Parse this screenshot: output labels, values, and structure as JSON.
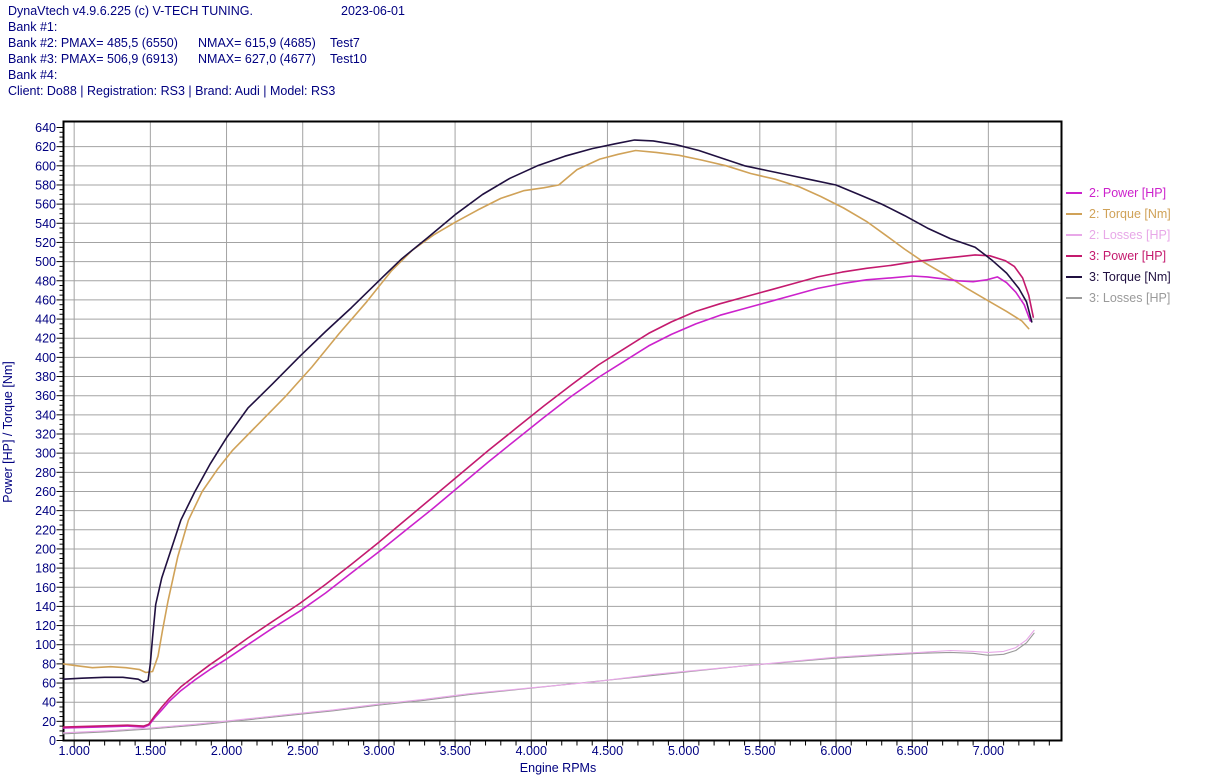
{
  "header": {
    "app_title": "DynaVtech v4.9.6.225 (c) V-TECH TUNING.",
    "date": "2023-06-01",
    "bank1": "Bank #1:",
    "bank2": {
      "pmax": "Bank #2: PMAX= 485,5 (6550)",
      "nmax": "NMAX= 615,9 (4685)",
      "test": "Test7"
    },
    "bank3": {
      "pmax": "Bank #3: PMAX= 506,9 (6913)",
      "nmax": "NMAX= 627,0 (4677)",
      "test": "Test10"
    },
    "bank4": "Bank #4:",
    "client_line": "Client: Do88 | Registration: RS3 | Brand: Audi | Model: RS3"
  },
  "legend": {
    "items": [
      {
        "label": "2: Power [HP]",
        "color": "#cc22cc"
      },
      {
        "label": "2: Torque [Nm]",
        "color": "#d0a258"
      },
      {
        "label": "2: Losses [HP]",
        "color": "#e8a8e8"
      },
      {
        "label": "3: Power [HP]",
        "color": "#c41a6e"
      },
      {
        "label": "3: Torque [Nm]",
        "color": "#201040"
      },
      {
        "label": "3: Losses [HP]",
        "color": "#9a9a9a"
      }
    ]
  },
  "colors": {
    "text": "#000080",
    "grid": "#a3a3a3",
    "border": "#000000",
    "background": "#ffffff"
  },
  "chart_data": {
    "type": "line",
    "title": "",
    "xlabel": "Engine RPMs",
    "ylabel": "Power [HP] / Torque [Nm]",
    "grid": true,
    "legend_position": "right",
    "x_axis": {
      "min": 930,
      "max": 7480,
      "major_tick": 500,
      "minor_tick": 100,
      "tick_labels": [
        {
          "rpm": 1000,
          "label": "1.000"
        },
        {
          "rpm": 1500,
          "label": "1.500"
        },
        {
          "rpm": 2000,
          "label": "2.000"
        },
        {
          "rpm": 2500,
          "label": "2.500"
        },
        {
          "rpm": 3000,
          "label": "3.000"
        },
        {
          "rpm": 3500,
          "label": "3.500"
        },
        {
          "rpm": 4000,
          "label": "4.000"
        },
        {
          "rpm": 4500,
          "label": "4.500"
        },
        {
          "rpm": 5000,
          "label": "5.000"
        },
        {
          "rpm": 5500,
          "label": "5.500"
        },
        {
          "rpm": 6000,
          "label": "6.000"
        },
        {
          "rpm": 6500,
          "label": "6.500"
        },
        {
          "rpm": 7000,
          "label": "7.000"
        }
      ]
    },
    "y_axis": {
      "min": 0,
      "max": 640,
      "major_tick": 20,
      "minor_tick": 5
    },
    "peaks": {
      "bank2": {
        "pmax_hp": 485.5,
        "pmax_rpm": 6550,
        "nmax_nm": 615.9,
        "nmax_rpm": 4685
      },
      "bank3": {
        "pmax_hp": 506.9,
        "pmax_rpm": 6913,
        "nmax_nm": 627.0,
        "nmax_rpm": 4677
      }
    },
    "series": [
      {
        "id": "l3",
        "name": "3: Losses [HP]",
        "color": "#9a9a9a",
        "width": 1.1,
        "points": [
          [
            930,
            7
          ],
          [
            1200,
            9
          ],
          [
            1500,
            12
          ],
          [
            1800,
            16
          ],
          [
            2100,
            21
          ],
          [
            2400,
            26
          ],
          [
            2700,
            31
          ],
          [
            3000,
            37
          ],
          [
            3300,
            42
          ],
          [
            3600,
            48
          ],
          [
            3900,
            53
          ],
          [
            4200,
            58
          ],
          [
            4500,
            63
          ],
          [
            4800,
            68
          ],
          [
            5100,
            73
          ],
          [
            5400,
            78
          ],
          [
            5700,
            82
          ],
          [
            6000,
            86
          ],
          [
            6300,
            89
          ],
          [
            6550,
            91
          ],
          [
            6750,
            92
          ],
          [
            6900,
            91
          ],
          [
            7000,
            89
          ],
          [
            7100,
            90
          ],
          [
            7180,
            94
          ],
          [
            7250,
            102
          ],
          [
            7300,
            112
          ]
        ]
      },
      {
        "id": "l2",
        "name": "2: Losses [HP]",
        "color": "#e8a8e8",
        "width": 1.1,
        "points": [
          [
            930,
            8
          ],
          [
            1200,
            10
          ],
          [
            1500,
            13
          ],
          [
            1800,
            17
          ],
          [
            2100,
            22
          ],
          [
            2400,
            27
          ],
          [
            2700,
            32
          ],
          [
            3000,
            38
          ],
          [
            3300,
            43
          ],
          [
            3600,
            49
          ],
          [
            4000,
            55
          ],
          [
            4400,
            61
          ],
          [
            4800,
            69
          ],
          [
            5200,
            75
          ],
          [
            5600,
            81
          ],
          [
            6000,
            87
          ],
          [
            6300,
            90
          ],
          [
            6550,
            92
          ],
          [
            6750,
            94
          ],
          [
            6900,
            93
          ],
          [
            7000,
            92
          ],
          [
            7100,
            93
          ],
          [
            7180,
            97
          ],
          [
            7250,
            105
          ],
          [
            7300,
            115
          ]
        ]
      },
      {
        "id": "t2",
        "name": "2: Torque [Nm]",
        "color": "#d0a258",
        "width": 1.6,
        "points": [
          [
            930,
            80
          ],
          [
            1020,
            78
          ],
          [
            1120,
            76
          ],
          [
            1240,
            77
          ],
          [
            1340,
            76
          ],
          [
            1430,
            74
          ],
          [
            1470,
            71
          ],
          [
            1515,
            72
          ],
          [
            1550,
            88
          ],
          [
            1580,
            115
          ],
          [
            1615,
            145
          ],
          [
            1680,
            192
          ],
          [
            1750,
            230
          ],
          [
            1840,
            260
          ],
          [
            1940,
            283
          ],
          [
            2040,
            303
          ],
          [
            2200,
            329
          ],
          [
            2380,
            358
          ],
          [
            2560,
            390
          ],
          [
            2740,
            425
          ],
          [
            2920,
            458
          ],
          [
            3080,
            490
          ],
          [
            3220,
            512
          ],
          [
            3360,
            528
          ],
          [
            3500,
            541
          ],
          [
            3650,
            554
          ],
          [
            3800,
            566
          ],
          [
            3950,
            574
          ],
          [
            4080,
            577
          ],
          [
            4180,
            580
          ],
          [
            4300,
            596
          ],
          [
            4450,
            607
          ],
          [
            4570,
            612
          ],
          [
            4685,
            616
          ],
          [
            4820,
            614
          ],
          [
            4970,
            611
          ],
          [
            5120,
            606
          ],
          [
            5280,
            600
          ],
          [
            5440,
            592
          ],
          [
            5600,
            586
          ],
          [
            5760,
            578
          ],
          [
            5900,
            568
          ],
          [
            6050,
            556
          ],
          [
            6200,
            542
          ],
          [
            6330,
            527
          ],
          [
            6450,
            513
          ],
          [
            6580,
            499
          ],
          [
            6720,
            486
          ],
          [
            6860,
            472
          ],
          [
            7000,
            459
          ],
          [
            7120,
            448
          ],
          [
            7220,
            438
          ],
          [
            7265,
            430
          ]
        ]
      },
      {
        "id": "p2",
        "name": "2: Power [HP]",
        "color": "#cc22cc",
        "width": 1.6,
        "points": [
          [
            930,
            13
          ],
          [
            1150,
            14
          ],
          [
            1350,
            15
          ],
          [
            1455,
            14
          ],
          [
            1490,
            16
          ],
          [
            1530,
            24
          ],
          [
            1575,
            32
          ],
          [
            1625,
            41
          ],
          [
            1700,
            52
          ],
          [
            1790,
            63
          ],
          [
            1890,
            74
          ],
          [
            2000,
            85
          ],
          [
            2140,
            100
          ],
          [
            2300,
            117
          ],
          [
            2480,
            135
          ],
          [
            2650,
            154
          ],
          [
            2820,
            175
          ],
          [
            3000,
            197
          ],
          [
            3180,
            220
          ],
          [
            3360,
            243
          ],
          [
            3540,
            267
          ],
          [
            3720,
            291
          ],
          [
            3900,
            314
          ],
          [
            4080,
            337
          ],
          [
            4260,
            359
          ],
          [
            4440,
            379
          ],
          [
            4600,
            395
          ],
          [
            4770,
            412
          ],
          [
            4920,
            424
          ],
          [
            5080,
            435
          ],
          [
            5240,
            444
          ],
          [
            5400,
            451
          ],
          [
            5560,
            458
          ],
          [
            5720,
            465
          ],
          [
            5880,
            472
          ],
          [
            6040,
            477
          ],
          [
            6200,
            481
          ],
          [
            6360,
            483
          ],
          [
            6500,
            485
          ],
          [
            6600,
            484
          ],
          [
            6700,
            482
          ],
          [
            6800,
            480
          ],
          [
            6900,
            479
          ],
          [
            6990,
            481
          ],
          [
            7060,
            484
          ],
          [
            7120,
            478
          ],
          [
            7180,
            468
          ],
          [
            7235,
            455
          ],
          [
            7275,
            438
          ]
        ]
      },
      {
        "id": "p3",
        "name": "3: Power [HP]",
        "color": "#c41a6e",
        "width": 1.6,
        "points": [
          [
            930,
            14
          ],
          [
            1150,
            15
          ],
          [
            1350,
            16
          ],
          [
            1455,
            15
          ],
          [
            1490,
            17
          ],
          [
            1530,
            26
          ],
          [
            1575,
            35
          ],
          [
            1625,
            44
          ],
          [
            1700,
            56
          ],
          [
            1790,
            67
          ],
          [
            1890,
            79
          ],
          [
            2000,
            91
          ],
          [
            2140,
            107
          ],
          [
            2300,
            124
          ],
          [
            2480,
            143
          ],
          [
            2650,
            163
          ],
          [
            2820,
            184
          ],
          [
            3000,
            207
          ],
          [
            3180,
            231
          ],
          [
            3360,
            255
          ],
          [
            3540,
            279
          ],
          [
            3720,
            303
          ],
          [
            3900,
            326
          ],
          [
            4080,
            349
          ],
          [
            4260,
            371
          ],
          [
            4440,
            392
          ],
          [
            4600,
            408
          ],
          [
            4770,
            425
          ],
          [
            4920,
            437
          ],
          [
            5080,
            448
          ],
          [
            5240,
            456
          ],
          [
            5400,
            463
          ],
          [
            5560,
            470
          ],
          [
            5720,
            477
          ],
          [
            5880,
            484
          ],
          [
            6040,
            489
          ],
          [
            6200,
            493
          ],
          [
            6360,
            496
          ],
          [
            6520,
            500
          ],
          [
            6680,
            503
          ],
          [
            6800,
            505
          ],
          [
            6913,
            507
          ],
          [
            7010,
            506
          ],
          [
            7110,
            501
          ],
          [
            7170,
            495
          ],
          [
            7225,
            483
          ],
          [
            7265,
            465
          ],
          [
            7295,
            442
          ]
        ]
      },
      {
        "id": "t3",
        "name": "3: Torque [Nm]",
        "color": "#201040",
        "width": 1.6,
        "points": [
          [
            930,
            64
          ],
          [
            1050,
            65
          ],
          [
            1200,
            66
          ],
          [
            1320,
            66
          ],
          [
            1420,
            64
          ],
          [
            1455,
            61
          ],
          [
            1485,
            63
          ],
          [
            1500,
            80
          ],
          [
            1515,
            108
          ],
          [
            1535,
            142
          ],
          [
            1575,
            170
          ],
          [
            1625,
            194
          ],
          [
            1700,
            230
          ],
          [
            1790,
            259
          ],
          [
            1890,
            288
          ],
          [
            2000,
            316
          ],
          [
            2140,
            347
          ],
          [
            2300,
            372
          ],
          [
            2480,
            401
          ],
          [
            2650,
            427
          ],
          [
            2820,
            452
          ],
          [
            3000,
            480
          ],
          [
            3150,
            503
          ],
          [
            3320,
            525
          ],
          [
            3500,
            549
          ],
          [
            3680,
            570
          ],
          [
            3860,
            587
          ],
          [
            4040,
            600
          ],
          [
            4220,
            610
          ],
          [
            4400,
            618
          ],
          [
            4550,
            623
          ],
          [
            4677,
            627
          ],
          [
            4800,
            626
          ],
          [
            4950,
            622
          ],
          [
            5100,
            616
          ],
          [
            5250,
            608
          ],
          [
            5400,
            600
          ],
          [
            5550,
            595
          ],
          [
            5700,
            590
          ],
          [
            5850,
            585
          ],
          [
            6000,
            580
          ],
          [
            6150,
            570
          ],
          [
            6300,
            560
          ],
          [
            6450,
            548
          ],
          [
            6600,
            535
          ],
          [
            6750,
            524
          ],
          [
            6913,
            515
          ],
          [
            7020,
            502
          ],
          [
            7120,
            488
          ],
          [
            7200,
            472
          ],
          [
            7250,
            458
          ],
          [
            7285,
            437
          ]
        ]
      }
    ]
  }
}
